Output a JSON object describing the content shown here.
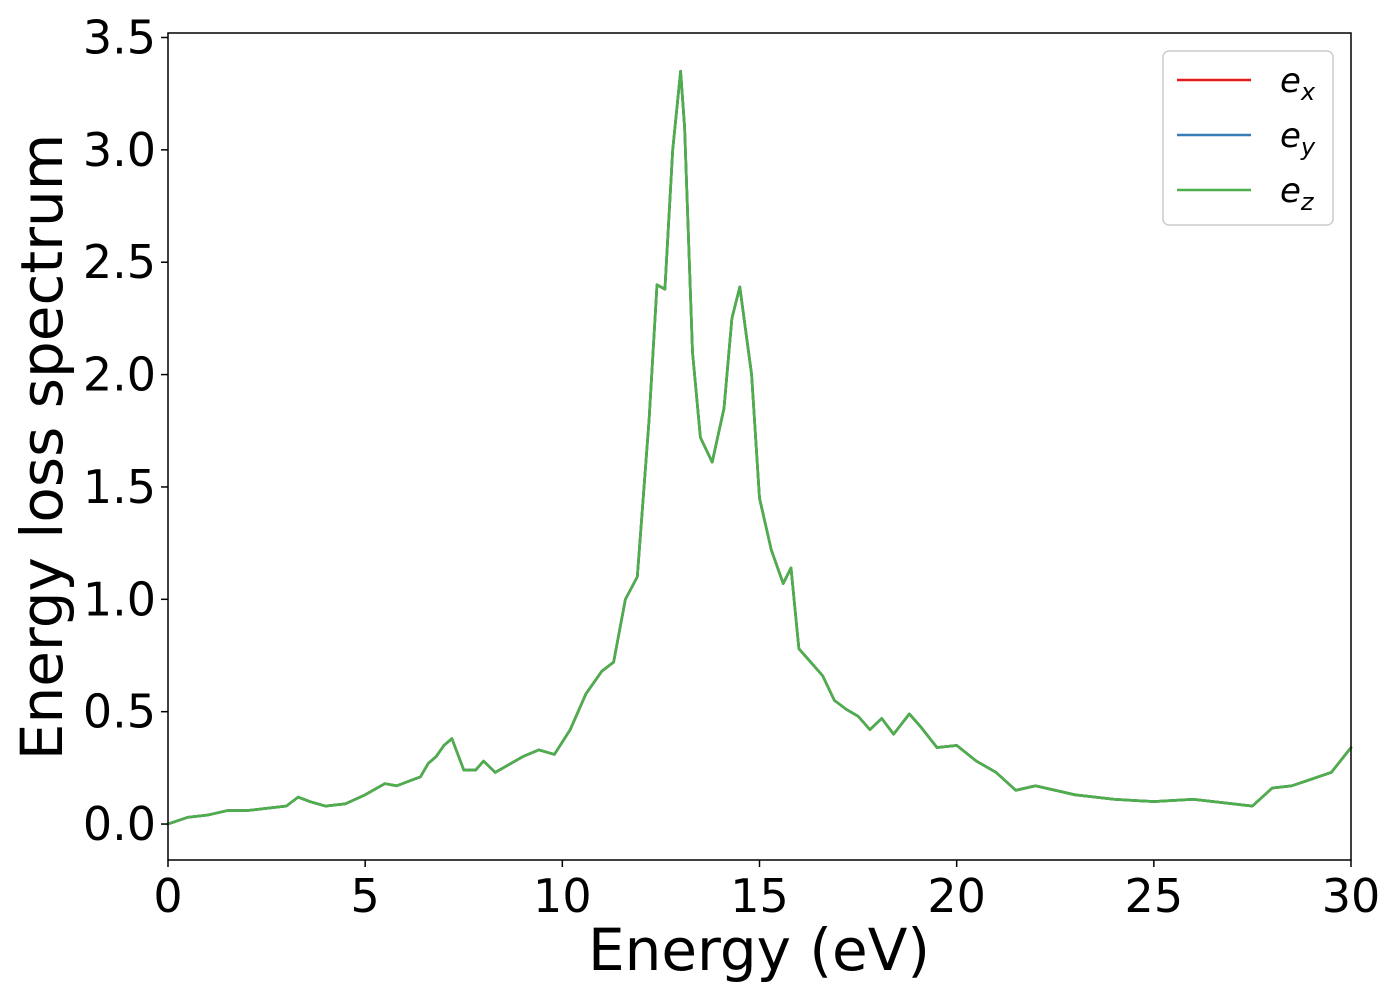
{
  "chart_data": {
    "type": "line",
    "xlabel": "Energy (eV)",
    "ylabel": "Energy loss spectrum",
    "xlim": [
      0,
      30
    ],
    "ylim": [
      -0.16,
      3.52
    ],
    "xticks": [
      "0",
      "5",
      "10",
      "15",
      "20",
      "25",
      "30"
    ],
    "yticks": [
      "0.0",
      "0.5",
      "1.0",
      "1.5",
      "2.0",
      "2.5",
      "3.0",
      "3.5"
    ],
    "grid": false,
    "legend_position": "top-right",
    "series": [
      {
        "name": "e",
        "subscript": "x",
        "color": "#e41a1c",
        "x": [
          0,
          0.5,
          1.0,
          1.5,
          2.0,
          2.5,
          3.0,
          3.3,
          3.6,
          4.0,
          4.5,
          5.0,
          5.5,
          5.8,
          6.1,
          6.4,
          6.6,
          6.8,
          7.0,
          7.2,
          7.5,
          7.8,
          8.0,
          8.3,
          8.6,
          9.0,
          9.4,
          9.8,
          10.2,
          10.6,
          11.0,
          11.3,
          11.6,
          11.9,
          12.2,
          12.4,
          12.6,
          12.8,
          13.0,
          13.1,
          13.3,
          13.5,
          13.8,
          14.1,
          14.3,
          14.5,
          14.8,
          15.0,
          15.3,
          15.6,
          15.8,
          16.0,
          16.3,
          16.6,
          16.9,
          17.2,
          17.5,
          17.8,
          18.1,
          18.4,
          18.8,
          19.1,
          19.5,
          20.0,
          20.5,
          21.0,
          21.5,
          22.0,
          22.5,
          23.0,
          23.5,
          24.0,
          25.0,
          26.0,
          27.0,
          27.5,
          28.0,
          28.5,
          29.0,
          29.5,
          30.0
        ],
        "y": [
          0.0,
          0.03,
          0.04,
          0.06,
          0.06,
          0.07,
          0.08,
          0.12,
          0.1,
          0.08,
          0.09,
          0.13,
          0.18,
          0.17,
          0.19,
          0.21,
          0.27,
          0.3,
          0.35,
          0.38,
          0.24,
          0.24,
          0.28,
          0.23,
          0.26,
          0.3,
          0.33,
          0.31,
          0.42,
          0.58,
          0.68,
          0.72,
          1.0,
          1.1,
          1.8,
          2.4,
          2.38,
          3.0,
          3.35,
          3.1,
          2.1,
          1.72,
          1.61,
          1.85,
          2.25,
          2.39,
          2.0,
          1.45,
          1.22,
          1.07,
          1.14,
          0.78,
          0.72,
          0.66,
          0.55,
          0.51,
          0.48,
          0.42,
          0.47,
          0.4,
          0.49,
          0.43,
          0.34,
          0.35,
          0.28,
          0.23,
          0.15,
          0.17,
          0.15,
          0.13,
          0.12,
          0.11,
          0.1,
          0.11,
          0.09,
          0.08,
          0.16,
          0.17,
          0.2,
          0.23,
          0.34
        ]
      },
      {
        "name": "e",
        "subscript": "y",
        "color": "#377eb8",
        "x": [
          0,
          0.5,
          1.0,
          1.5,
          2.0,
          2.5,
          3.0,
          3.3,
          3.6,
          4.0,
          4.5,
          5.0,
          5.5,
          5.8,
          6.1,
          6.4,
          6.6,
          6.8,
          7.0,
          7.2,
          7.5,
          7.8,
          8.0,
          8.3,
          8.6,
          9.0,
          9.4,
          9.8,
          10.2,
          10.6,
          11.0,
          11.3,
          11.6,
          11.9,
          12.2,
          12.4,
          12.6,
          12.8,
          13.0,
          13.1,
          13.3,
          13.5,
          13.8,
          14.1,
          14.3,
          14.5,
          14.8,
          15.0,
          15.3,
          15.6,
          15.8,
          16.0,
          16.3,
          16.6,
          16.9,
          17.2,
          17.5,
          17.8,
          18.1,
          18.4,
          18.8,
          19.1,
          19.5,
          20.0,
          20.5,
          21.0,
          21.5,
          22.0,
          22.5,
          23.0,
          23.5,
          24.0,
          25.0,
          26.0,
          27.0,
          27.5,
          28.0,
          28.5,
          29.0,
          29.5,
          30.0
        ],
        "y": [
          0.0,
          0.03,
          0.04,
          0.06,
          0.06,
          0.07,
          0.08,
          0.12,
          0.1,
          0.08,
          0.09,
          0.13,
          0.18,
          0.17,
          0.19,
          0.21,
          0.27,
          0.3,
          0.35,
          0.38,
          0.24,
          0.24,
          0.28,
          0.23,
          0.26,
          0.3,
          0.33,
          0.31,
          0.42,
          0.58,
          0.68,
          0.72,
          1.0,
          1.1,
          1.8,
          2.4,
          2.38,
          3.0,
          3.35,
          3.1,
          2.1,
          1.72,
          1.61,
          1.85,
          2.25,
          2.39,
          2.0,
          1.45,
          1.22,
          1.07,
          1.14,
          0.78,
          0.72,
          0.66,
          0.55,
          0.51,
          0.48,
          0.42,
          0.47,
          0.4,
          0.49,
          0.43,
          0.34,
          0.35,
          0.28,
          0.23,
          0.15,
          0.17,
          0.15,
          0.13,
          0.12,
          0.11,
          0.1,
          0.11,
          0.09,
          0.08,
          0.16,
          0.17,
          0.2,
          0.23,
          0.34
        ]
      },
      {
        "name": "e",
        "subscript": "z",
        "color": "#4daf4a",
        "x": [
          0,
          0.5,
          1.0,
          1.5,
          2.0,
          2.5,
          3.0,
          3.3,
          3.6,
          4.0,
          4.5,
          5.0,
          5.5,
          5.8,
          6.1,
          6.4,
          6.6,
          6.8,
          7.0,
          7.2,
          7.5,
          7.8,
          8.0,
          8.3,
          8.6,
          9.0,
          9.4,
          9.8,
          10.2,
          10.6,
          11.0,
          11.3,
          11.6,
          11.9,
          12.2,
          12.4,
          12.6,
          12.8,
          13.0,
          13.1,
          13.3,
          13.5,
          13.8,
          14.1,
          14.3,
          14.5,
          14.8,
          15.0,
          15.3,
          15.6,
          15.8,
          16.0,
          16.3,
          16.6,
          16.9,
          17.2,
          17.5,
          17.8,
          18.1,
          18.4,
          18.8,
          19.1,
          19.5,
          20.0,
          20.5,
          21.0,
          21.5,
          22.0,
          22.5,
          23.0,
          23.5,
          24.0,
          25.0,
          26.0,
          27.0,
          27.5,
          28.0,
          28.5,
          29.0,
          29.5,
          30.0
        ],
        "y": [
          0.0,
          0.03,
          0.04,
          0.06,
          0.06,
          0.07,
          0.08,
          0.12,
          0.1,
          0.08,
          0.09,
          0.13,
          0.18,
          0.17,
          0.19,
          0.21,
          0.27,
          0.3,
          0.35,
          0.38,
          0.24,
          0.24,
          0.28,
          0.23,
          0.26,
          0.3,
          0.33,
          0.31,
          0.42,
          0.58,
          0.68,
          0.72,
          1.0,
          1.1,
          1.8,
          2.4,
          2.38,
          3.0,
          3.35,
          3.1,
          2.1,
          1.72,
          1.61,
          1.85,
          2.25,
          2.39,
          2.0,
          1.45,
          1.22,
          1.07,
          1.14,
          0.78,
          0.72,
          0.66,
          0.55,
          0.51,
          0.48,
          0.42,
          0.47,
          0.4,
          0.49,
          0.43,
          0.34,
          0.35,
          0.28,
          0.23,
          0.15,
          0.17,
          0.15,
          0.13,
          0.12,
          0.11,
          0.1,
          0.11,
          0.09,
          0.08,
          0.16,
          0.17,
          0.2,
          0.23,
          0.34
        ]
      }
    ]
  }
}
